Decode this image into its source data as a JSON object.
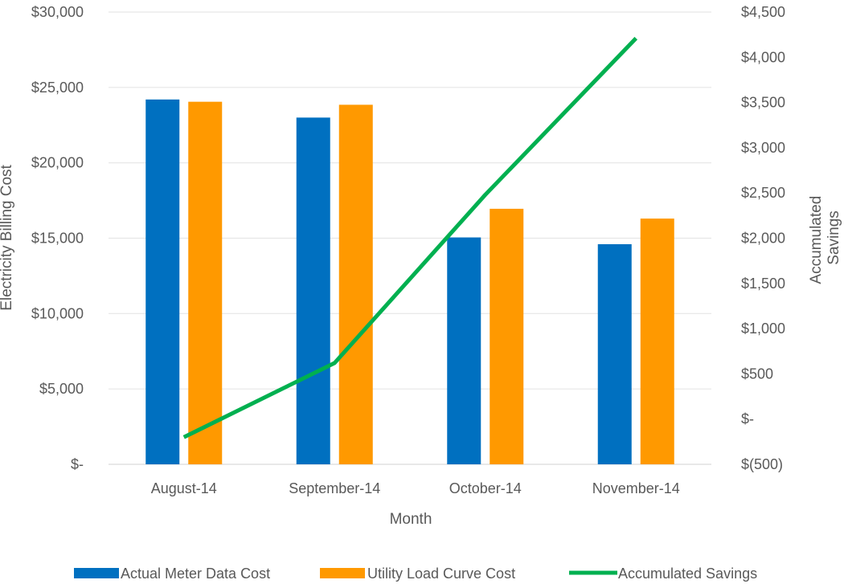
{
  "chart_data": {
    "type": "bar",
    "categories": [
      "August-14",
      "September-14",
      "October-14",
      "November-14"
    ],
    "series": [
      {
        "name": "Actual Meter Data Cost",
        "kind": "bar",
        "axis": "left",
        "color": "#0070C0",
        "values": [
          24200,
          23000,
          15050,
          14600
        ]
      },
      {
        "name": "Utility  Load Curve Cost",
        "kind": "bar",
        "axis": "left",
        "color": "#FF9900",
        "values": [
          24050,
          23850,
          16950,
          16300
        ]
      },
      {
        "name": "Accumulated Savings",
        "kind": "line",
        "axis": "right",
        "color": "#00B050",
        "values": [
          -200,
          620,
          2480,
          4210
        ]
      }
    ],
    "xlabel": "Month",
    "ylabel": "Electricity Billing Cost",
    "y2label_lines": [
      "Accumulated",
      "Savings"
    ],
    "ylim": [
      0,
      30000
    ],
    "y2lim": [
      -500,
      4500
    ],
    "yticks": [
      "$-",
      "$5,000",
      "$10,000",
      "$15,000",
      "$20,000",
      "$25,000",
      "$30,000"
    ],
    "y2ticks": [
      "$(500)",
      "$-",
      "$500",
      "$1,000",
      "$1,500",
      "$2,000",
      "$2,500",
      "$3,000",
      "$3,500",
      "$4,000",
      "$4,500"
    ],
    "grid": true,
    "legend": "bottom"
  }
}
